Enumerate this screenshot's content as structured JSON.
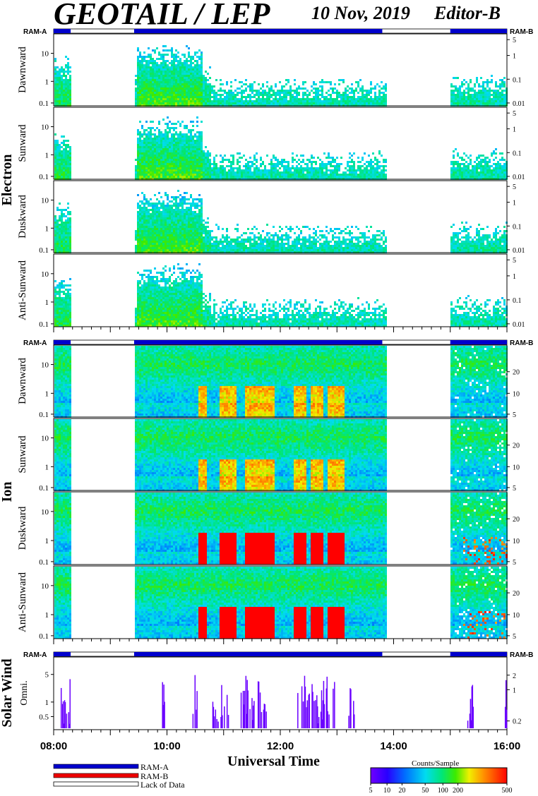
{
  "header": {
    "title": "GEOTAIL / LEP",
    "date": "10 Nov, 2019",
    "editor": "Editor-B"
  },
  "ram_labels": {
    "left": "RAM-A",
    "right": "RAM-B"
  },
  "x_axis": {
    "title": "Universal Time",
    "ticks": [
      "08:00",
      "10:00",
      "12:00",
      "14:00",
      "16:00"
    ],
    "range_hours": [
      8,
      16
    ]
  },
  "groups": [
    {
      "name": "Electron",
      "panels": [
        "Dawnward",
        "Sunward",
        "Duskward",
        "Anti-Sunward"
      ]
    },
    {
      "name": "Ion",
      "panels": [
        "Dawnward",
        "Sunward",
        "Duskward",
        "Anti-Sunward"
      ]
    },
    {
      "name": "Solar Wind",
      "panels": [
        "Omni."
      ]
    }
  ],
  "axes": {
    "electron_left_ticks": [
      "10",
      "1",
      "0.1"
    ],
    "electron_right_ticks": [
      "5",
      "1",
      "0.1",
      "0.01"
    ],
    "ion_left_ticks": [
      "10",
      "1",
      "0.1"
    ],
    "ion_right_ticks": [
      "20",
      "10",
      "5"
    ],
    "solar_left_ticks": [
      "5",
      "1",
      "0.5"
    ],
    "solar_right_ticks": [
      "2",
      "1",
      "0.2"
    ]
  },
  "legend": {
    "ram_a": "RAM-A",
    "ram_b": "RAM-B",
    "lack": "Lack of Data",
    "ram_a_color": "#0000cc",
    "ram_b_color": "#ee0000"
  },
  "colorbar": {
    "title": "Counts/Sample",
    "ticks": [
      "5",
      "10",
      "20",
      "50",
      "100",
      "200",
      "500"
    ]
  },
  "chart_data": {
    "type": "heatmap",
    "title": "GEOTAIL / LEP",
    "xlabel": "Universal Time",
    "data_coverage_ut": [
      [
        8.0,
        8.3
      ],
      [
        9.42,
        13.85
      ],
      [
        15.0,
        16.0
      ]
    ],
    "ram_a_intervals_ut": [
      [
        8.0,
        8.3
      ],
      [
        9.42,
        13.8
      ],
      [
        15.0,
        16.0
      ]
    ]
  }
}
